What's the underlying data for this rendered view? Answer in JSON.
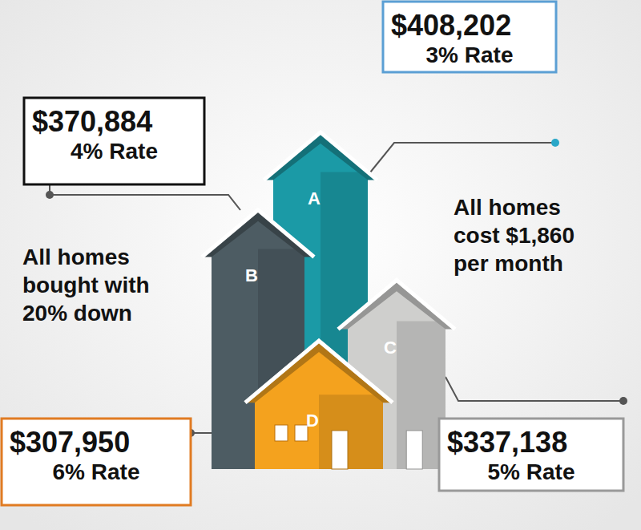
{
  "chart_data": {
    "type": "bar",
    "categories": [
      "A",
      "B",
      "C",
      "D"
    ],
    "values": [
      408202,
      370884,
      337138,
      307950
    ],
    "value_labels": [
      "$408,202",
      "$370,884",
      "$337,138",
      "$307,950"
    ],
    "rate_labels": [
      "3% Rate",
      "4% Rate",
      "5% Rate",
      "6% Rate"
    ],
    "colors": [
      "#1b9aa6",
      "#4d5c63",
      "#cfcfcd",
      "#f4a21e"
    ],
    "annotations": [
      [
        "All homes",
        "bought with",
        "20% down"
      ],
      [
        "All homes",
        "cost $1,860",
        "per month"
      ]
    ],
    "data_labels": true,
    "tick_labels": false
  }
}
